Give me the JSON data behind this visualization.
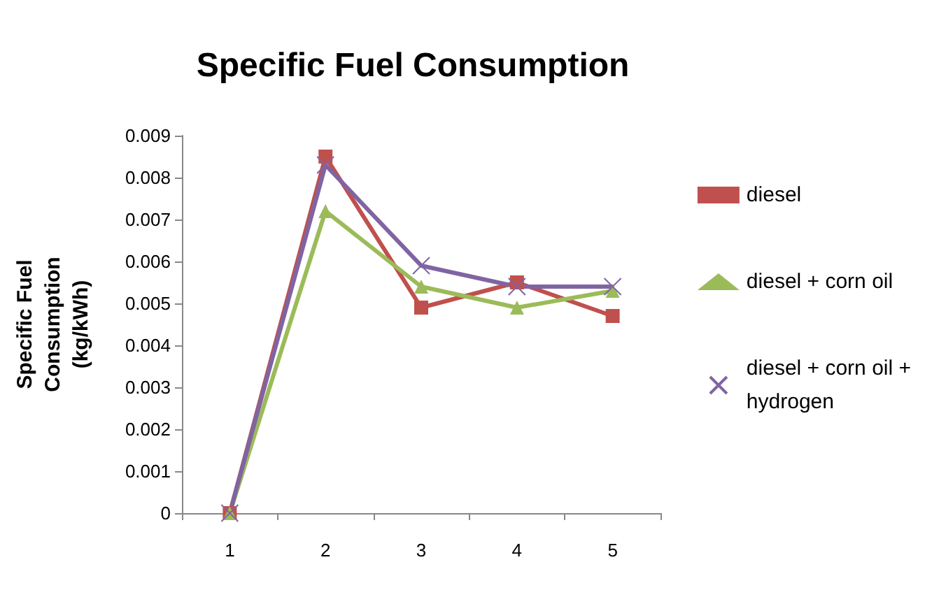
{
  "chart_data": {
    "type": "line",
    "title": "Specific Fuel Consumption",
    "ylabel": "Specific Fuel Consumption (kg/kWh)",
    "categories": [
      "1",
      "2",
      "3",
      "4",
      "5"
    ],
    "series": [
      {
        "name": "diesel",
        "color": "#c0504d",
        "marker": "square",
        "values": [
          0,
          0.0085,
          0.0049,
          0.0055,
          0.0047
        ]
      },
      {
        "name": "diesel + corn oil",
        "color": "#9bbb59",
        "marker": "triangle",
        "values": [
          0,
          0.0072,
          0.0054,
          0.0049,
          0.0053
        ]
      },
      {
        "name": "diesel + corn oil + hydrogen",
        "color": "#8064a2",
        "marker": "cross",
        "values": [
          0,
          0.0083,
          0.0059,
          0.0054,
          0.0054
        ]
      }
    ],
    "ylim": [
      0,
      0.009
    ],
    "yticks": [
      0,
      0.001,
      0.002,
      0.003,
      0.004,
      0.005,
      0.006,
      0.007,
      0.008,
      0.009
    ],
    "grid": false,
    "legend": "right"
  }
}
